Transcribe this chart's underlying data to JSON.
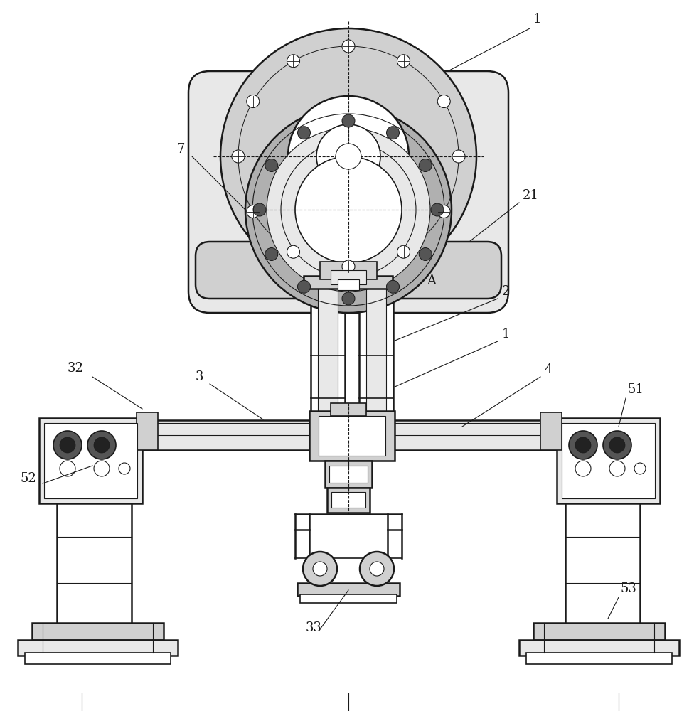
{
  "bg_color": "#ffffff",
  "lc": "#1a1a1a",
  "gray1": "#d0d0d0",
  "gray2": "#e8e8e8",
  "gray3": "#b0b0b0",
  "dark": "#555555",
  "very_dark": "#222222"
}
